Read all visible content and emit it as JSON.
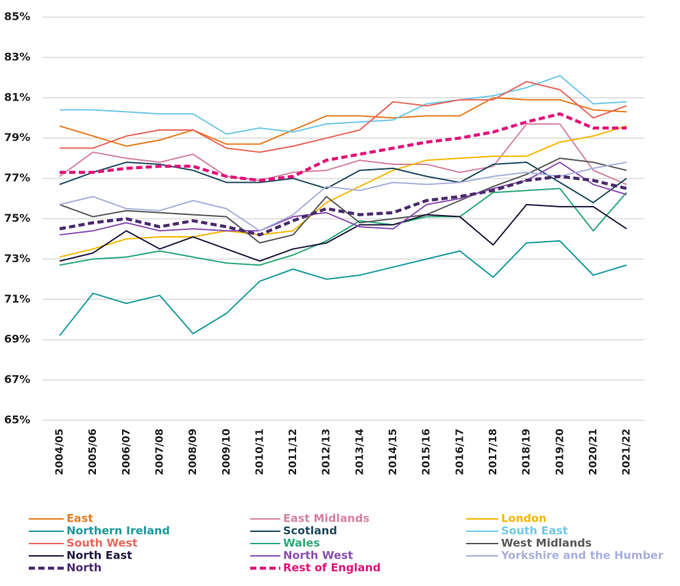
{
  "chart_data": {
    "type": "line",
    "categories": [
      "2004/05",
      "2005/06",
      "2006/07",
      "2007/08",
      "2008/09",
      "2009/10",
      "2010/11",
      "2011/12",
      "2012/13",
      "2013/14",
      "2014/15",
      "2015/16",
      "2016/17",
      "2017/18",
      "2018/19",
      "2019/20",
      "2020/21",
      "2021/22"
    ],
    "ylim": [
      65,
      85
    ],
    "yticks": [
      {
        "value": 65,
        "label": "65%"
      },
      {
        "value": 67,
        "label": "67%"
      },
      {
        "value": 69,
        "label": "69%"
      },
      {
        "value": 71,
        "label": "71%"
      },
      {
        "value": 73,
        "label": "73%"
      },
      {
        "value": 75,
        "label": "75%"
      },
      {
        "value": 77,
        "label": "77%"
      },
      {
        "value": 79,
        "label": "79%"
      },
      {
        "value": 81,
        "label": "81%"
      },
      {
        "value": 83,
        "label": "83%"
      },
      {
        "value": 85,
        "label": "85%"
      }
    ],
    "grid": true,
    "series": [
      {
        "name": "East",
        "color": "#e87c1e",
        "values": [
          79.6,
          79.1,
          78.6,
          78.9,
          79.4,
          78.7,
          78.7,
          79.4,
          80.1,
          80.1,
          80.0,
          80.1,
          80.1,
          81.0,
          80.9,
          80.9,
          80.4,
          80.3
        ]
      },
      {
        "name": "East Midlands",
        "color": "#d4839f",
        "values": [
          77.1,
          78.3,
          78.0,
          77.8,
          78.2,
          77.1,
          76.9,
          77.3,
          77.4,
          77.9,
          77.7,
          77.7,
          77.3,
          77.6,
          79.7,
          79.7,
          77.4,
          76.7
        ]
      },
      {
        "name": "London",
        "color": "#f5b800",
        "values": [
          73.1,
          73.5,
          74.0,
          74.1,
          74.1,
          74.4,
          74.2,
          74.4,
          75.8,
          76.6,
          77.4,
          77.9,
          78.0,
          78.1,
          78.1,
          78.8,
          79.1,
          79.6
        ]
      },
      {
        "name": "Northern Ireland",
        "color": "#1a9a9e",
        "values": [
          69.2,
          71.3,
          70.8,
          71.2,
          69.3,
          70.3,
          71.9,
          72.5,
          72.0,
          72.2,
          72.6,
          73.0,
          73.4,
          72.1,
          73.8,
          73.9,
          72.2,
          72.7
        ]
      },
      {
        "name": "Scotland",
        "color": "#1c4a5e",
        "values": [
          76.7,
          77.3,
          77.8,
          77.7,
          77.4,
          76.8,
          76.8,
          77.0,
          76.5,
          77.4,
          77.5,
          77.1,
          76.8,
          77.7,
          77.8,
          76.8,
          75.8,
          77.0
        ]
      },
      {
        "name": "South East",
        "color": "#70c8e8",
        "values": [
          80.4,
          80.4,
          80.3,
          80.2,
          80.2,
          79.2,
          79.5,
          79.3,
          79.7,
          79.8,
          79.9,
          80.7,
          80.9,
          81.1,
          81.5,
          82.1,
          80.7,
          80.8
        ]
      },
      {
        "name": "South West",
        "color": "#e8665a",
        "values": [
          78.5,
          78.5,
          79.1,
          79.4,
          79.4,
          78.5,
          78.3,
          78.6,
          79.0,
          79.4,
          80.8,
          80.6,
          80.9,
          80.9,
          81.8,
          81.4,
          80.0,
          80.6
        ]
      },
      {
        "name": "Wales",
        "color": "#2baa78",
        "values": [
          72.7,
          73.0,
          73.1,
          73.4,
          73.1,
          72.8,
          72.7,
          73.2,
          73.9,
          74.9,
          74.7,
          75.1,
          75.1,
          76.3,
          76.4,
          76.5,
          74.4,
          76.3
        ]
      },
      {
        "name": "West Midlands",
        "color": "#595959",
        "values": [
          75.7,
          75.1,
          75.4,
          75.3,
          75.2,
          75.1,
          73.8,
          74.2,
          76.1,
          74.8,
          75.0,
          75.2,
          75.9,
          76.6,
          77.2,
          78.0,
          77.8,
          77.4
        ]
      },
      {
        "name": "North East",
        "color": "#1f1a3d",
        "values": [
          72.9,
          73.3,
          74.4,
          73.5,
          74.1,
          73.5,
          72.9,
          73.5,
          73.8,
          74.7,
          74.7,
          75.2,
          75.1,
          73.7,
          75.7,
          75.6,
          75.6,
          74.5
        ]
      },
      {
        "name": "North West",
        "color": "#8b4fb0",
        "values": [
          74.2,
          74.4,
          74.8,
          74.4,
          74.5,
          74.4,
          74.4,
          75.1,
          75.3,
          74.6,
          74.5,
          75.7,
          76.0,
          76.5,
          76.9,
          77.8,
          76.7,
          76.2
        ]
      },
      {
        "name": "Yorkshire and the Humber",
        "color": "#a8b0dc",
        "values": [
          75.7,
          76.1,
          75.5,
          75.4,
          75.9,
          75.5,
          74.4,
          75.2,
          76.6,
          76.4,
          76.8,
          76.7,
          76.8,
          77.1,
          77.3,
          77.1,
          77.5,
          77.8
        ]
      },
      {
        "name": "North",
        "color": "#4a2a6e",
        "dashed": true,
        "values": [
          74.5,
          74.8,
          75.0,
          74.6,
          74.9,
          74.6,
          74.2,
          74.9,
          75.5,
          75.2,
          75.3,
          75.9,
          76.1,
          76.4,
          76.9,
          77.1,
          76.9,
          76.5
        ]
      },
      {
        "name": "Rest of England",
        "color": "#e0127a",
        "dashed": true,
        "values": [
          77.3,
          77.3,
          77.5,
          77.6,
          77.6,
          77.1,
          76.9,
          77.1,
          77.9,
          78.2,
          78.5,
          78.8,
          79.0,
          79.3,
          79.8,
          80.2,
          79.5,
          79.5
        ]
      }
    ]
  }
}
